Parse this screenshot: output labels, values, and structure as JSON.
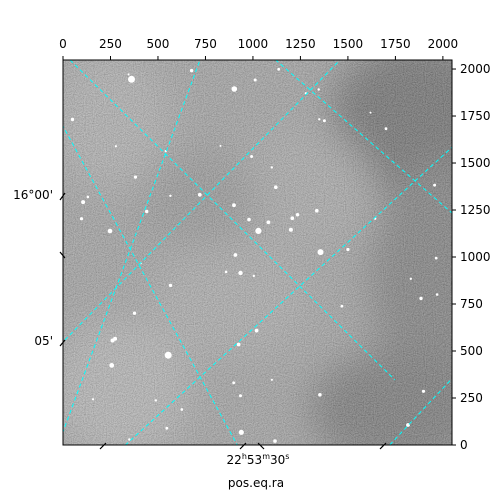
{
  "chart_data": {
    "type": "image",
    "xlim": [
      0,
      2048
    ],
    "ylim": [
      0,
      2048
    ],
    "top_ticks": [
      "0",
      "250",
      "500",
      "750",
      "1000",
      "1250",
      "1500",
      "1750",
      "2000"
    ],
    "top_tick_values": [
      0,
      250,
      500,
      750,
      1000,
      1250,
      1500,
      1750,
      2000
    ],
    "right_ticks": [
      "0",
      "250",
      "500",
      "750",
      "1000",
      "1250",
      "1500",
      "1750",
      "2000"
    ],
    "right_tick_values": [
      0,
      250,
      500,
      750,
      1000,
      1250,
      1500,
      1750,
      2000
    ],
    "dec_labels": [
      "16°00'",
      "05'"
    ],
    "ra_label": {
      "main": "22",
      "h": "h",
      "m_val": "53",
      "m": "m",
      "s_val": "30",
      "s": "s"
    },
    "xlabel": "pos.eq.ra",
    "grid": true,
    "grid_color": "#00ffff",
    "image_colormap": "gray"
  }
}
